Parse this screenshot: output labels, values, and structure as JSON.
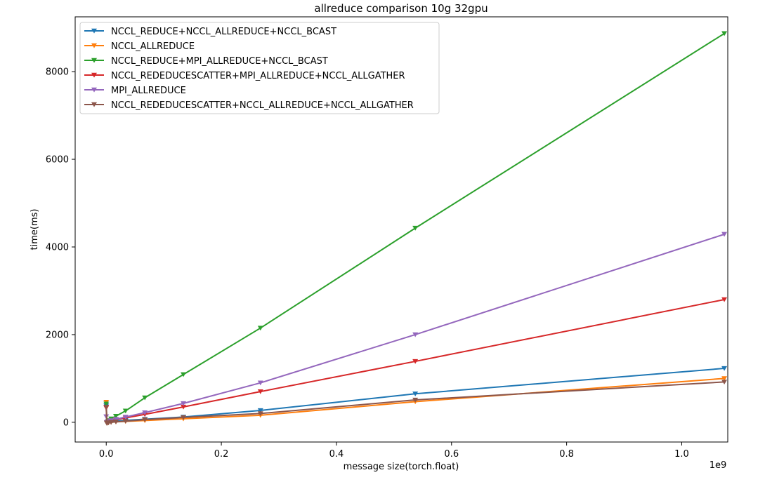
{
  "chart_data": {
    "type": "line",
    "title": "allreduce comparison 10g 32gpu",
    "xlabel": "message size(torch.float)",
    "ylabel": "time(ms)",
    "x_offset_label": "1e9",
    "xlim": [
      -0.054,
      1.08
    ],
    "ylim": [
      -450,
      9250
    ],
    "xticks": [
      0.0,
      0.2,
      0.4,
      0.6,
      0.8,
      1.0
    ],
    "xtick_labels": [
      "0.0",
      "0.2",
      "0.4",
      "0.6",
      "0.8",
      "1.0"
    ],
    "yticks": [
      0,
      2000,
      4000,
      6000,
      8000
    ],
    "ytick_labels": [
      "0",
      "2000",
      "4000",
      "6000",
      "8000"
    ],
    "grid": false,
    "legend_position": "top-left",
    "marker": "triangle-down",
    "x": [
      0.0,
      0.001,
      0.002,
      0.004,
      0.0084,
      0.0168,
      0.0336,
      0.0671,
      0.134,
      0.268,
      0.537,
      1.074
    ],
    "series": [
      {
        "name": "NCCL_REDUCE+NCCL_ALLREDUCE+NCCL_BCAST",
        "color": "#1f77b4",
        "values": [
          380,
          -20,
          -10,
          0,
          15,
          30,
          45,
          70,
          120,
          270,
          650,
          1230
        ]
      },
      {
        "name": "NCCL_ALLREDUCE",
        "color": "#ff7f0e",
        "values": [
          460,
          -20,
          -15,
          -10,
          0,
          10,
          20,
          40,
          80,
          160,
          470,
          1000
        ]
      },
      {
        "name": "NCCL_REDUCE+MPI_ALLREDUCE+NCCL_BCAST",
        "color": "#2ca02c",
        "values": [
          420,
          -10,
          10,
          40,
          80,
          140,
          260,
          560,
          1090,
          2150,
          4430,
          8870
        ]
      },
      {
        "name": "NCCL_REDEDUCESCATTER+MPI_ALLREDUCE+NCCL_ALLGATHER",
        "color": "#d62728",
        "values": [
          330,
          -10,
          0,
          10,
          30,
          60,
          100,
          180,
          350,
          700,
          1390,
          2800
        ]
      },
      {
        "name": "MPI_ALLREDUCE",
        "color": "#9467bd",
        "values": [
          130,
          -10,
          0,
          20,
          40,
          70,
          120,
          220,
          430,
          900,
          2000,
          4290
        ]
      },
      {
        "name": "NCCL_REDEDUCESCATTER+NCCL_ALLREDUCE+NCCL_ALLGATHER",
        "color": "#8c564b",
        "values": [
          350,
          -20,
          -15,
          -10,
          0,
          10,
          25,
          60,
          110,
          200,
          510,
          920
        ]
      }
    ]
  }
}
